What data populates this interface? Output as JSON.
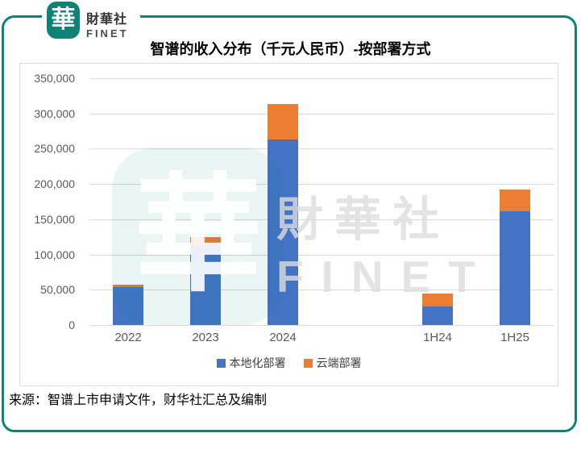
{
  "logo": {
    "mark": "華",
    "name": "財華社",
    "subname": "FINET"
  },
  "title": "智谱的收入分布（千元人民币）-按部署方式",
  "footer": "来源：智谱上市申请文件，财华社汇总及编制",
  "watermark": {
    "mark": "華",
    "line1": "財華社",
    "line2": "FINET"
  },
  "colors": {
    "teal": "#0d8276",
    "local_deploy_blue": "#4472C4",
    "cloud_deploy_orange": "#ED7D31",
    "gridline": "#d9d9d9",
    "axis_text": "#595959"
  },
  "chart_data": {
    "type": "bar",
    "stacked": true,
    "title": "智谱的收入分布（千元人民币）-按部署方式",
    "categories": [
      "2022",
      "2023",
      "2024",
      "",
      "1H24",
      "1H25"
    ],
    "series": [
      {
        "name": "本地化部署",
        "color": "#4472C4",
        "values": [
          54000,
          112000,
          263000,
          null,
          26000,
          161000
        ]
      },
      {
        "name": "云端部署",
        "color": "#ED7D31",
        "values": [
          3000,
          13000,
          50000,
          null,
          19000,
          31000
        ]
      }
    ],
    "ylim": [
      0,
      350000
    ],
    "ytick_interval": 50000,
    "yticks": [
      "350,000",
      "300,000",
      "250,000",
      "200,000",
      "150,000",
      "100,000",
      "50,000",
      "0"
    ],
    "grid": true,
    "legend_position": "bottom"
  }
}
